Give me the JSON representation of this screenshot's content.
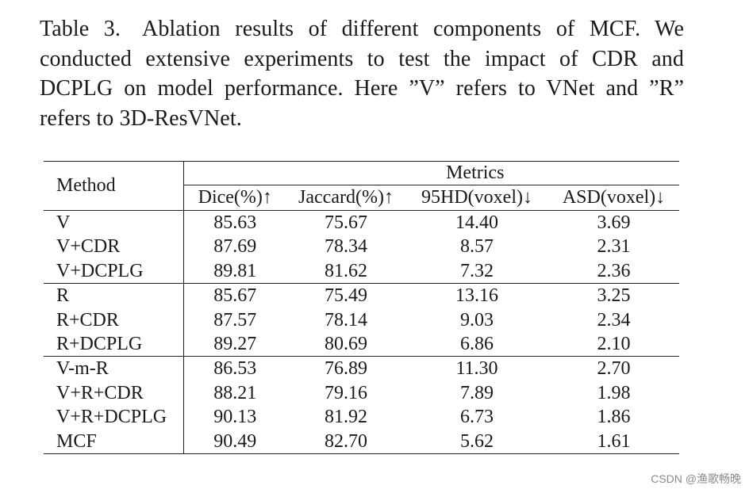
{
  "caption": {
    "label": "Table 3.",
    "text": "Ablation results of different components of MCF. We conducted extensive experiments to test the impact of CDR and DCPLG on model performance. Here ”V” refers to VNet and ”R” refers to 3D-ResVNet."
  },
  "table": {
    "method_header": "Method",
    "metrics_header": "Metrics",
    "columns": [
      "Dice(%)↑",
      "Jaccard(%)↑",
      "95HD(voxel)↓",
      "ASD(voxel)↓"
    ],
    "groups": [
      [
        {
          "method": "V",
          "values": [
            "85.63",
            "75.67",
            "14.40",
            "3.69"
          ]
        },
        {
          "method": "V+CDR",
          "values": [
            "87.69",
            "78.34",
            "8.57",
            "2.31"
          ]
        },
        {
          "method": "V+DCPLG",
          "values": [
            "89.81",
            "81.62",
            "7.32",
            "2.36"
          ]
        }
      ],
      [
        {
          "method": "R",
          "values": [
            "85.67",
            "75.49",
            "13.16",
            "3.25"
          ]
        },
        {
          "method": "R+CDR",
          "values": [
            "87.57",
            "78.14",
            "9.03",
            "2.34"
          ]
        },
        {
          "method": "R+DCPLG",
          "values": [
            "89.27",
            "80.69",
            "6.86",
            "2.10"
          ]
        }
      ],
      [
        {
          "method": "V-m-R",
          "values": [
            "86.53",
            "76.89",
            "11.30",
            "2.70"
          ]
        },
        {
          "method": "V+R+CDR",
          "values": [
            "88.21",
            "79.16",
            "7.89",
            "1.98"
          ]
        },
        {
          "method": "V+R+DCPLG",
          "values": [
            "90.13",
            "81.92",
            "6.73",
            "1.86"
          ]
        },
        {
          "method": "MCF",
          "values": [
            "90.49",
            "82.70",
            "5.62",
            "1.61"
          ]
        }
      ]
    ]
  },
  "watermark": "CSDN @渔歌畅晚"
}
